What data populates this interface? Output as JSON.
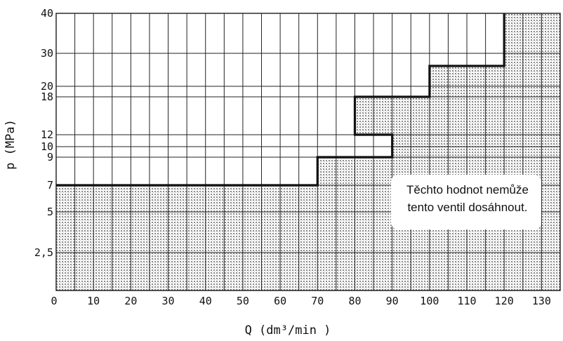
{
  "chart_data": {
    "type": "area",
    "title": "",
    "xlabel": "Q (dm³/min )",
    "ylabel": "p (MPa)",
    "xlim": [
      0,
      135
    ],
    "x_ticks": [
      "0",
      "10",
      "20",
      "30",
      "40",
      "50",
      "60",
      "70",
      "80",
      "90",
      "100",
      "110",
      "120",
      "130"
    ],
    "y_ticks": [
      "2,5",
      "5",
      "7",
      "9",
      "10",
      "12",
      "18",
      "20",
      "30",
      "40"
    ],
    "grid": true,
    "boundary": [
      {
        "q": 0,
        "p": 7
      },
      {
        "q": 70,
        "p": 7
      },
      {
        "q": 70,
        "p": 9
      },
      {
        "q": 90,
        "p": 9
      },
      {
        "q": 90,
        "p": 12
      },
      {
        "q": 80,
        "p": 12
      },
      {
        "q": 80,
        "p": 18
      },
      {
        "q": 100,
        "p": 18
      },
      {
        "q": 100,
        "p": 22
      },
      {
        "q": 120,
        "p": 22
      },
      {
        "q": 120,
        "p": 40
      }
    ],
    "annotation": "Těchto hodnot nemůže tento ventil dosáhnout."
  },
  "colors": {
    "shade": "#8a8a8a",
    "line": "#111111"
  }
}
